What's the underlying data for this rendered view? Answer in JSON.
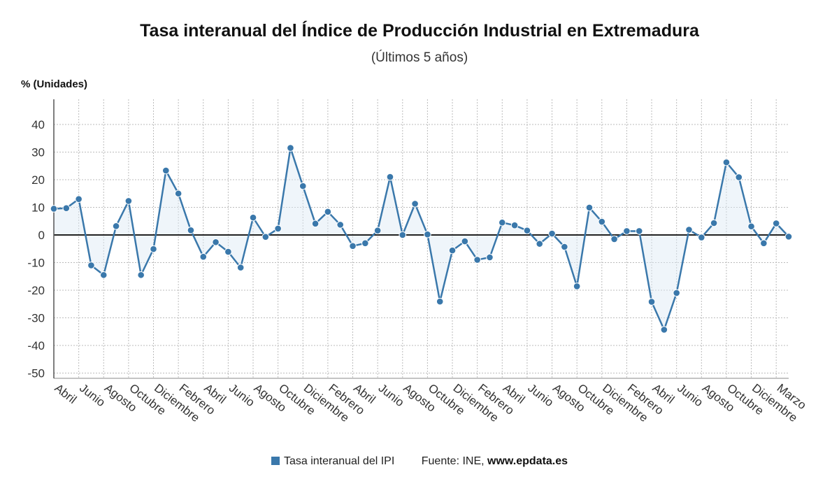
{
  "title": "Tasa interanual del Índice de Producción Industrial en Extremadura",
  "subtitle": "(Últimos 5 años)",
  "legend": {
    "series_label": "Tasa interanual del IPI",
    "source_prefix": "Fuente: INE,",
    "source_site": "www.epdata.es"
  },
  "colors": {
    "line": "#3a78ab",
    "fill": "#dce8f3",
    "zero": "#222222",
    "grid": "#bbbbbb"
  },
  "chart_data": {
    "type": "line",
    "ylabel": "% (Unidades)",
    "ylim": [
      -52,
      48
    ],
    "yticks": [
      40,
      30,
      20,
      10,
      0,
      -10,
      -20,
      -30,
      -40,
      -50
    ],
    "grid": true,
    "x_tick_labels": [
      "Abril",
      "Junio",
      "Agosto",
      "Octubre",
      "Diciembre",
      "Febrero",
      "Abril",
      "Junio",
      "Agosto",
      "Octubre",
      "Diciembre",
      "Febrero",
      "Abril",
      "Junio",
      "Agosto",
      "Octubre",
      "Diciembre",
      "Febrero",
      "Abril",
      "Junio",
      "Agosto",
      "Octubre",
      "Diciembre",
      "Febrero",
      "Abril",
      "Junio",
      "Agosto",
      "Octubre",
      "Diciembre",
      "Marzo"
    ],
    "series": [
      {
        "name": "Tasa interanual del IPI",
        "values": [
          9.5,
          9.7,
          13,
          -11,
          -14.5,
          3.2,
          12.3,
          -14.5,
          -5.1,
          23.3,
          15,
          1.7,
          -7.9,
          -2.6,
          -6.1,
          -11.8,
          6.3,
          -0.7,
          2.3,
          31.5,
          17.7,
          4.1,
          8.4,
          3.7,
          -4,
          -3,
          1.6,
          21,
          0,
          11.3,
          0.2,
          -24.1,
          -5.6,
          -2.3,
          -9,
          -8.1,
          4.5,
          3.5,
          1.6,
          -3.2,
          0.5,
          -4.3,
          -18.6,
          9.9,
          4.8,
          -1.5,
          1.4,
          1.4,
          -24.2,
          -34.3,
          -21,
          1.9,
          -0.9,
          4.3,
          26.3,
          20.9,
          3.1,
          -3,
          4.2,
          -0.6
        ]
      }
    ]
  }
}
